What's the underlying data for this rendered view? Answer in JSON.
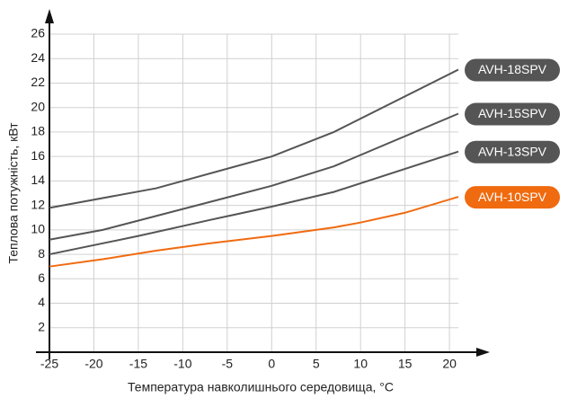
{
  "chart_data": {
    "type": "line",
    "x_label": "Температура навколишнього середовища, °C",
    "y_label": "Теплова потужність, кВт",
    "xlim": [
      -25,
      21
    ],
    "ylim": [
      0,
      26
    ],
    "xticks": [
      -25,
      -20,
      -15,
      -10,
      -5,
      0,
      5,
      10,
      15,
      20
    ],
    "yticks": [
      2,
      4,
      6,
      8,
      10,
      12,
      14,
      16,
      18,
      20,
      22,
      24,
      26
    ],
    "grid": true,
    "series": [
      {
        "name": "AVH-18SPV",
        "color": "#555555",
        "x": [
          -25,
          -13,
          0,
          7,
          21
        ],
        "values": [
          11.8,
          13.4,
          16,
          18,
          23.1
        ]
      },
      {
        "name": "AVH-15SPV",
        "color": "#555555",
        "x": [
          -25,
          -19,
          0,
          7,
          21
        ],
        "values": [
          9.2,
          10,
          13.6,
          15.2,
          19.5
        ]
      },
      {
        "name": "AVH-13SPV",
        "color": "#555555",
        "x": [
          -25,
          -15,
          -7,
          0,
          7,
          21
        ],
        "values": [
          8,
          9.5,
          10.8,
          11.9,
          13.1,
          16.4
        ]
      },
      {
        "name": "AVH-10SPV",
        "color": "#f06a0f",
        "x": [
          -25,
          -19,
          -13,
          -7,
          0,
          7,
          10,
          15,
          21
        ],
        "values": [
          7,
          7.6,
          8.3,
          8.9,
          9.5,
          10.2,
          10.6,
          11.4,
          12.7
        ]
      }
    ]
  }
}
